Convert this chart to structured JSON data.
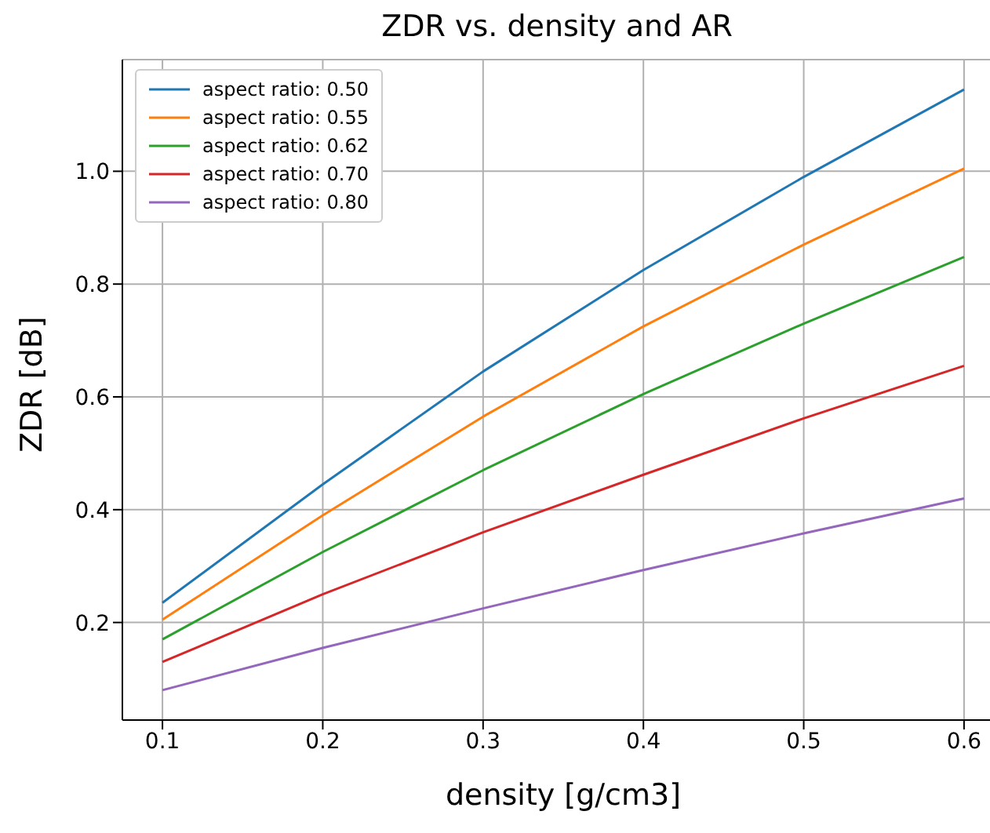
{
  "chart_data": {
    "type": "line",
    "title": "ZDR vs. density and AR",
    "xlabel": "density [g/cm3]",
    "ylabel": "ZDR [dB]",
    "x": [
      0.1,
      0.2,
      0.3,
      0.4,
      0.5,
      0.6
    ],
    "series": [
      {
        "name": "aspect ratio: 0.50",
        "color": "#1f77b4",
        "values": [
          0.235,
          0.445,
          0.645,
          0.825,
          0.99,
          1.145
        ]
      },
      {
        "name": "aspect ratio: 0.55",
        "color": "#ff7f0e",
        "values": [
          0.205,
          0.39,
          0.565,
          0.725,
          0.87,
          1.005
        ]
      },
      {
        "name": "aspect ratio: 0.62",
        "color": "#2ca02c",
        "values": [
          0.17,
          0.325,
          0.47,
          0.605,
          0.73,
          0.848
        ]
      },
      {
        "name": "aspect ratio: 0.70",
        "color": "#d62728",
        "values": [
          0.13,
          0.25,
          0.36,
          0.462,
          0.562,
          0.655
        ]
      },
      {
        "name": "aspect ratio: 0.80",
        "color": "#9467bd",
        "values": [
          0.08,
          0.155,
          0.225,
          0.293,
          0.358,
          0.42
        ]
      }
    ],
    "xlim": [
      0.075,
      0.625
    ],
    "xticks": [
      0.1,
      0.2,
      0.3,
      0.4,
      0.5,
      0.6
    ],
    "ylim": [
      0.027,
      1.198
    ],
    "yticks": [
      0.2,
      0.4,
      0.6,
      0.8,
      {
        "value": 1,
        "label": "1.0"
      }
    ],
    "grid": true,
    "legend": "top left",
    "marker": "none",
    "line_style": "solid"
  }
}
